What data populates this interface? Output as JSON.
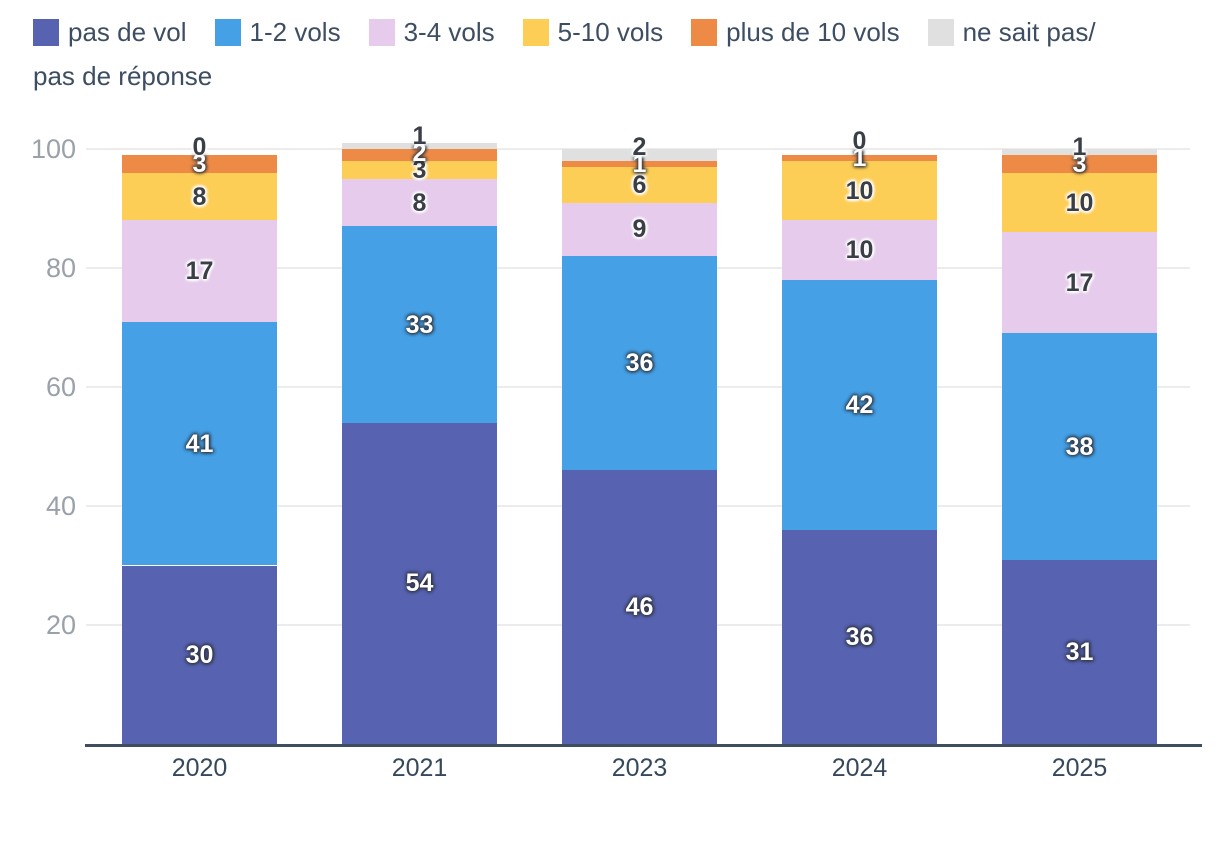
{
  "chart_data": {
    "type": "bar",
    "stacked": true,
    "title": "",
    "xlabel": "",
    "ylabel": "",
    "categories": [
      "2020",
      "2021",
      "2023",
      "2024",
      "2025"
    ],
    "series": [
      {
        "name": "pas de vol",
        "color": "#5763b0",
        "label_style": "light",
        "values": [
          30,
          54,
          46,
          36,
          31
        ]
      },
      {
        "name": "1-2 vols",
        "color": "#45a0e6",
        "label_style": "light",
        "values": [
          41,
          33,
          36,
          42,
          38
        ]
      },
      {
        "name": "3-4 vols",
        "color": "#e6cbec",
        "label_style": "dark",
        "values": [
          17,
          8,
          9,
          10,
          17
        ]
      },
      {
        "name": "5-10 vols",
        "color": "#fdce55",
        "label_style": "dark",
        "values": [
          8,
          3,
          6,
          10,
          10
        ]
      },
      {
        "name": "plus de 10 vols",
        "color": "#ed8a46",
        "label_style": "light",
        "values": [
          3,
          2,
          1,
          1,
          3
        ]
      },
      {
        "name": "ne sait pas/pas de réponse",
        "color": "#e0e0e0",
        "label_style": "dark",
        "values": [
          0,
          1,
          2,
          0,
          1
        ]
      }
    ],
    "ylim": [
      0,
      100
    ],
    "yticks": [
      20,
      40,
      60,
      80,
      100
    ],
    "grid": true,
    "legend_position": "top"
  },
  "legend": {
    "items": [
      {
        "label": "pas de vol",
        "color": "#5763b0"
      },
      {
        "label": "1-2 vols",
        "color": "#45a0e6"
      },
      {
        "label": "3-4 vols",
        "color": "#e6cbec"
      },
      {
        "label": "5-10 vols",
        "color": "#fdce55"
      },
      {
        "label": "plus de 10 vols",
        "color": "#ed8a46"
      },
      {
        "label": "ne sait pas/",
        "label_line2": "pas de réponse",
        "color": "#e0e0e0"
      }
    ]
  },
  "colors": {
    "grid": "#ececec",
    "axis_line": "#3f4e5e",
    "ytick_text": "#9aa1ab",
    "xtick_text": "#36495c",
    "legend_text": "#3d4e63",
    "background": "#ffffff"
  }
}
